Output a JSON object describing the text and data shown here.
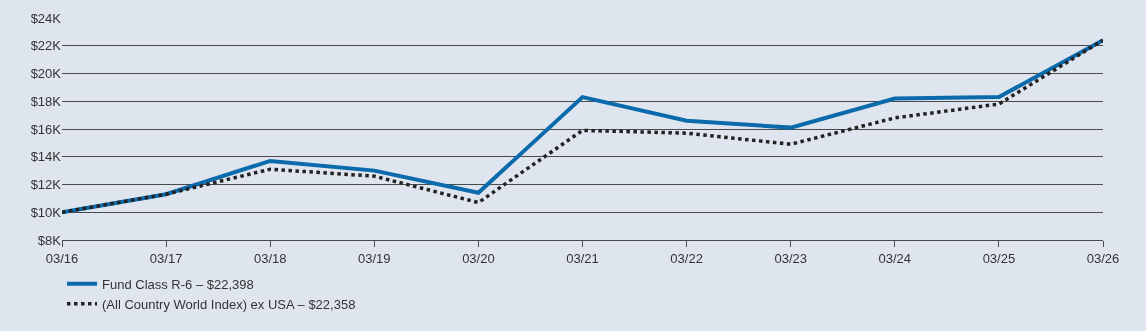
{
  "chart_data": {
    "type": "line",
    "categories": [
      "03/16",
      "03/17",
      "03/18",
      "03/19",
      "03/20",
      "03/21",
      "03/22",
      "03/23",
      "03/24",
      "03/25",
      "03/26"
    ],
    "series": [
      {
        "name": "Fund Class R-6 – $22,398",
        "color": "#0b6aab",
        "line_style": "solid",
        "values": [
          10000,
          11300,
          13700,
          13000,
          11400,
          18300,
          16600,
          16100,
          18200,
          18300,
          22400
        ]
      },
      {
        "name": "(All Country World Index) ex USA – $22,358",
        "color": "#222222",
        "line_style": "dotted",
        "values": [
          10000,
          11300,
          13100,
          12600,
          10700,
          15900,
          15700,
          14900,
          16800,
          17800,
          22400
        ]
      }
    ],
    "ylim": [
      8000,
      24000
    ],
    "yticks": [
      {
        "value": 8000,
        "label": "$8K"
      },
      {
        "value": 10000,
        "label": "$10K"
      },
      {
        "value": 12000,
        "label": "$12K"
      },
      {
        "value": 14000,
        "label": "$14K"
      },
      {
        "value": 16000,
        "label": "$16K"
      },
      {
        "value": 18000,
        "label": "$18K"
      },
      {
        "value": 20000,
        "label": "$20K"
      },
      {
        "value": 22000,
        "label": "$22K"
      },
      {
        "value": 24000,
        "label": "$24K"
      }
    ],
    "grid": "y",
    "legend": "bottom left",
    "marker": "none"
  }
}
